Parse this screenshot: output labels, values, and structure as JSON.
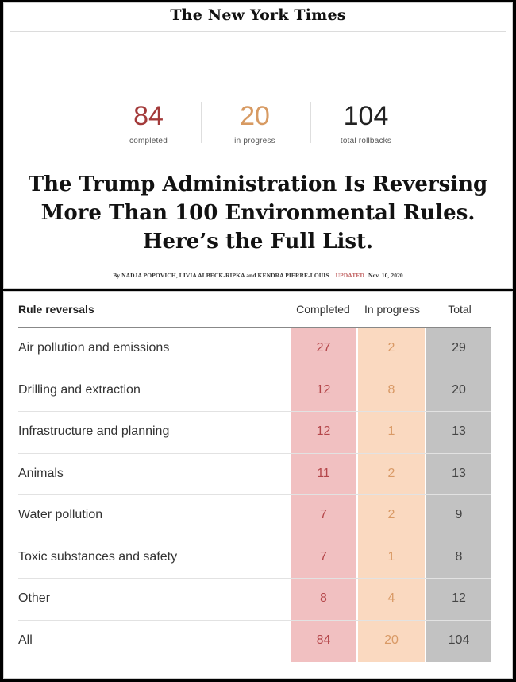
{
  "masthead": "The New York Times",
  "stats": [
    {
      "value": "84",
      "label": "completed",
      "color": "#a33a3a"
    },
    {
      "value": "20",
      "label": "in progress",
      "color": "#d79a62"
    },
    {
      "value": "104",
      "label": "total rollbacks",
      "color": "#222222"
    }
  ],
  "headline": {
    "line1": "The Trump Administration Is Reversing",
    "line2": "More Than 100 Environmental Rules.",
    "line3": "Here’s the Full List."
  },
  "byline": {
    "authors": "By NADJA POPOVICH, LIVIA ALBECK-RIPKA and KENDRA PIERRE-LOUIS",
    "updated_label": "UPDATED",
    "date": "Nov. 10, 2020"
  },
  "table": {
    "headers": {
      "rule": "Rule reversals",
      "completed": "Completed",
      "in_progress": "In progress",
      "total": "Total"
    },
    "colors": {
      "completed_bg": "#f1c0c1",
      "in_progress_bg": "#fad9c0",
      "total_bg": "#c2c2c2"
    },
    "rows": [
      {
        "name": "Air pollution and emissions",
        "completed": "27",
        "in_progress": "2",
        "total": "29"
      },
      {
        "name": "Drilling and extraction",
        "completed": "12",
        "in_progress": "8",
        "total": "20"
      },
      {
        "name": "Infrastructure and planning",
        "completed": "12",
        "in_progress": "1",
        "total": "13"
      },
      {
        "name": "Animals",
        "completed": "11",
        "in_progress": "2",
        "total": "13"
      },
      {
        "name": "Water pollution",
        "completed": "7",
        "in_progress": "2",
        "total": "9"
      },
      {
        "name": "Toxic substances and safety",
        "completed": "7",
        "in_progress": "1",
        "total": "8"
      },
      {
        "name": "Other",
        "completed": "8",
        "in_progress": "4",
        "total": "12"
      },
      {
        "name": "All",
        "completed": "84",
        "in_progress": "20",
        "total": "104"
      }
    ]
  }
}
